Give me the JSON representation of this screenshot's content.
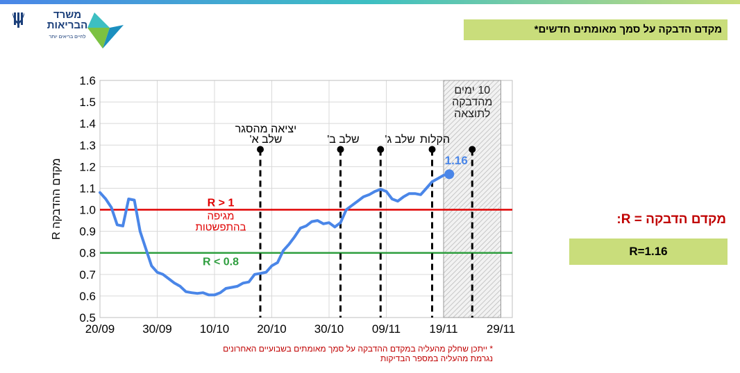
{
  "header": {
    "title": "מקדם הדבקה על סמך מאומתים חדשים*",
    "logo_name": "משרד הבריאות",
    "logo_tagline": "לחיים בריאים יותר"
  },
  "side": {
    "definition": "מקדם הדבקה = R:",
    "r_value": "R=1.16"
  },
  "footnote": {
    "line1": "* ייתכן שחלק מהעליה במקדם ההדבקה על סמך מאומתים בשבועיים האחרונים",
    "line2": "נגרמת מהעליה במספר הבדיקות"
  },
  "colors": {
    "accent_green": "#c9dd7b",
    "series_blue": "#4a86e8",
    "threshold_red": "#e00000",
    "threshold_green": "#2e9e3e",
    "text_red": "#c00000"
  },
  "chart_data": {
    "type": "line",
    "ylabel": "מקדם ההדבקה R",
    "xlabel": "",
    "ylim": [
      0.5,
      1.6
    ],
    "y_ticks": [
      "0.5",
      "0.6",
      "0.7",
      "0.8",
      "0.9",
      "1.0",
      "1.1",
      "1.2",
      "1.3",
      "1.4",
      "1.5",
      "1.6"
    ],
    "x_ticks": [
      {
        "day": 0,
        "label": "20/09"
      },
      {
        "day": 10,
        "label": "30/09"
      },
      {
        "day": 20,
        "label": "10/10"
      },
      {
        "day": 30,
        "label": "20/10"
      },
      {
        "day": 40,
        "label": "30/10"
      },
      {
        "day": 50,
        "label": "09/11"
      },
      {
        "day": 60,
        "label": "19/11"
      },
      {
        "day": 70,
        "label": "29/11"
      }
    ],
    "xlim": [
      0,
      72
    ],
    "grid": true,
    "series": [
      {
        "values": [
          [
            0,
            1.08
          ],
          [
            1,
            1.05
          ],
          [
            2,
            1.01
          ],
          [
            3,
            0.93
          ],
          [
            4,
            0.925
          ],
          [
            5,
            1.05
          ],
          [
            6,
            1.045
          ],
          [
            7,
            0.9
          ],
          [
            8,
            0.82
          ],
          [
            9,
            0.74
          ],
          [
            10,
            0.71
          ],
          [
            11,
            0.7
          ],
          [
            12,
            0.68
          ],
          [
            13,
            0.66
          ],
          [
            14,
            0.645
          ],
          [
            15,
            0.62
          ],
          [
            16,
            0.615
          ],
          [
            17,
            0.612
          ],
          [
            18,
            0.615
          ],
          [
            19,
            0.605
          ],
          [
            20,
            0.605
          ],
          [
            21,
            0.615
          ],
          [
            22,
            0.635
          ],
          [
            23,
            0.64
          ],
          [
            24,
            0.645
          ],
          [
            25,
            0.66
          ],
          [
            26,
            0.665
          ],
          [
            27,
            0.7
          ],
          [
            28,
            0.705
          ],
          [
            29,
            0.71
          ],
          [
            30,
            0.74
          ],
          [
            31,
            0.755
          ],
          [
            32,
            0.81
          ],
          [
            33,
            0.84
          ],
          [
            34,
            0.875
          ],
          [
            35,
            0.915
          ],
          [
            36,
            0.925
          ],
          [
            37,
            0.945
          ],
          [
            38,
            0.95
          ],
          [
            39,
            0.935
          ],
          [
            40,
            0.94
          ],
          [
            41,
            0.92
          ],
          [
            42,
            0.94
          ],
          [
            43,
            1.0
          ],
          [
            44,
            1.02
          ],
          [
            45,
            1.04
          ],
          [
            46,
            1.06
          ],
          [
            47,
            1.07
          ],
          [
            48,
            1.085
          ],
          [
            49,
            1.095
          ],
          [
            50,
            1.085
          ],
          [
            51,
            1.05
          ],
          [
            52,
            1.04
          ],
          [
            53,
            1.06
          ],
          [
            54,
            1.075
          ],
          [
            55,
            1.075
          ],
          [
            56,
            1.07
          ],
          [
            57,
            1.1
          ],
          [
            58,
            1.13
          ],
          [
            59,
            1.145
          ],
          [
            60,
            1.16
          ],
          [
            61,
            1.165
          ]
        ]
      }
    ],
    "end_label": "1.16",
    "thresholds": [
      {
        "y": 1.0,
        "label": "R > 1",
        "sublabel1": "מגיפה",
        "sublabel2": "בהתפשטות",
        "color": "#e00000"
      },
      {
        "y": 0.8,
        "label": "R < 0.8",
        "color": "#2e9e3e"
      }
    ],
    "events": [
      {
        "day": 28,
        "label1": "יציאה מהסגר",
        "label2": "שלב א'"
      },
      {
        "day": 42,
        "label1": "שלב ב'"
      },
      {
        "day": 49,
        "label1": "שלב ג'"
      },
      {
        "day": 58,
        "label1": "הקלות"
      },
      {
        "day": 65,
        "label1": ""
      }
    ],
    "shaded_band": {
      "from_day": 60,
      "to_day": 70,
      "label1": "10 ימים",
      "label2": "מהדבקה",
      "label3": "לתוצאה"
    }
  }
}
